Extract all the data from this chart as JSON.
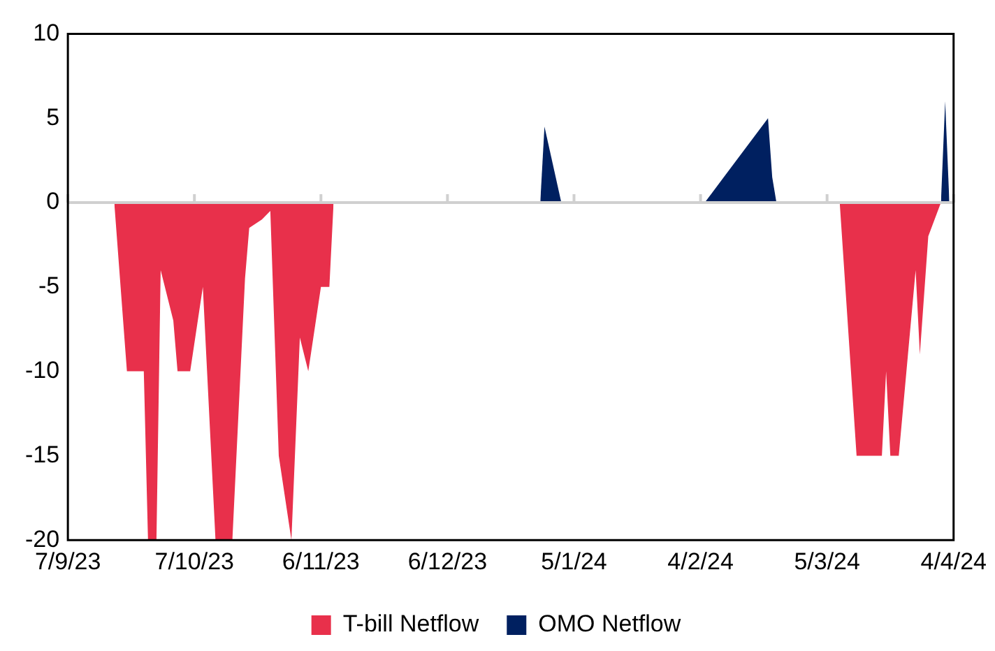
{
  "chart_data": {
    "type": "area",
    "xlim": [
      "2023-09-07",
      "2024-04-04"
    ],
    "xticks": [
      {
        "value": "2023-09-07",
        "label": "7/9/23"
      },
      {
        "value": "2023-10-07",
        "label": "7/10/23"
      },
      {
        "value": "2023-11-06",
        "label": "6/11/23"
      },
      {
        "value": "2023-12-06",
        "label": "6/12/23"
      },
      {
        "value": "2024-01-05",
        "label": "5/1/24"
      },
      {
        "value": "2024-02-04",
        "label": "4/2/24"
      },
      {
        "value": "2024-03-05",
        "label": "5/3/24"
      },
      {
        "value": "2024-04-04",
        "label": "4/4/24"
      }
    ],
    "ylim": [
      -20,
      10
    ],
    "yticks": [
      -20,
      -15,
      -10,
      -5,
      0,
      5,
      10
    ],
    "grid": false,
    "legend": "bottom",
    "ref_lines": [
      {
        "axis": "y",
        "value": 0,
        "color": "#d0d0d0"
      }
    ],
    "series": [
      {
        "name": "T-bill Netflow",
        "color": "#e8304b",
        "x": [
          "2023-09-18",
          "2023-09-21",
          "2023-09-25",
          "2023-09-26",
          "2023-09-28",
          "2023-09-29",
          "2023-10-02",
          "2023-10-03",
          "2023-10-06",
          "2023-10-09",
          "2023-10-10",
          "2023-10-12",
          "2023-10-16",
          "2023-10-19",
          "2023-10-20",
          "2023-10-23",
          "2023-10-25",
          "2023-10-27",
          "2023-10-30",
          "2023-11-01",
          "2023-11-03",
          "2023-11-06",
          "2023-11-08",
          "2023-11-09",
          "2024-01-01",
          "2024-03-08",
          "2024-03-12",
          "2024-03-18",
          "2024-03-19",
          "2024-03-20",
          "2024-03-22",
          "2024-03-26",
          "2024-03-27",
          "2024-03-29",
          "2024-04-01"
        ],
        "values": [
          0,
          -10,
          -10,
          -20,
          -20,
          -4,
          -7,
          -10,
          -10,
          -5,
          -10,
          -20,
          -20,
          -4.5,
          -1.5,
          -1,
          -0.5,
          -15,
          -20,
          -8,
          -10,
          -5,
          -5,
          0,
          null,
          0,
          -15,
          -15,
          -10,
          -15,
          -15,
          -4,
          -9,
          -2,
          0
        ]
      },
      {
        "name": "OMO Netflow",
        "color": "#002060",
        "x": [
          "2023-12-28",
          "2023-12-29",
          "2024-01-02",
          "2024-01-20",
          "2024-02-05",
          "2024-02-20",
          "2024-02-21",
          "2024-02-22",
          "2024-03-10",
          "2024-04-01",
          "2024-04-02",
          "2024-04-03"
        ],
        "values": [
          0,
          4.5,
          0,
          null,
          0,
          5,
          1.5,
          0,
          null,
          0,
          6,
          0
        ]
      }
    ]
  }
}
